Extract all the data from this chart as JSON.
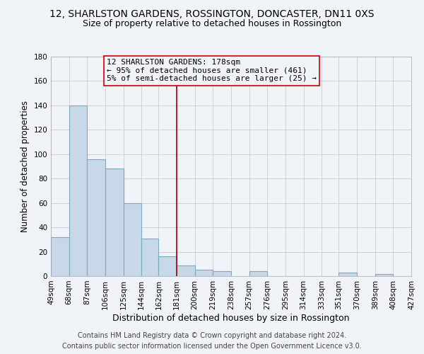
{
  "title": "12, SHARLSTON GARDENS, ROSSINGTON, DONCASTER, DN11 0XS",
  "subtitle": "Size of property relative to detached houses in Rossington",
  "xlabel": "Distribution of detached houses by size in Rossington",
  "ylabel": "Number of detached properties",
  "bin_edges": [
    49,
    68,
    87,
    106,
    125,
    144,
    162,
    181,
    200,
    219,
    238,
    257,
    276,
    295,
    314,
    333,
    351,
    370,
    389,
    408,
    427
  ],
  "bar_heights": [
    32,
    140,
    96,
    88,
    60,
    31,
    16,
    9,
    5,
    4,
    0,
    4,
    0,
    0,
    0,
    0,
    3,
    0,
    2,
    0
  ],
  "bar_color": "#c8d8e8",
  "bar_edge_color": "#7aaabb",
  "bar_linewidth": 0.8,
  "vline_x": 181,
  "vline_color": "#aa0000",
  "vline_linewidth": 1.2,
  "annotation_line1": "12 SHARLSTON GARDENS: 178sqm",
  "annotation_line2": "← 95% of detached houses are smaller (461)",
  "annotation_line3": "5% of semi-detached houses are larger (25) →",
  "annotation_box_color": "#cc0000",
  "ylim": [
    0,
    180
  ],
  "yticks": [
    0,
    20,
    40,
    60,
    80,
    100,
    120,
    140,
    160,
    180
  ],
  "xtick_labels": [
    "49sqm",
    "68sqm",
    "87sqm",
    "106sqm",
    "125sqm",
    "144sqm",
    "162sqm",
    "181sqm",
    "200sqm",
    "219sqm",
    "238sqm",
    "257sqm",
    "276sqm",
    "295sqm",
    "314sqm",
    "333sqm",
    "351sqm",
    "370sqm",
    "389sqm",
    "408sqm",
    "427sqm"
  ],
  "grid_color": "#cccccc",
  "background_color": "#f0f4f8",
  "footer_text": "Contains HM Land Registry data © Crown copyright and database right 2024.\nContains public sector information licensed under the Open Government Licence v3.0.",
  "title_fontsize": 10,
  "subtitle_fontsize": 9,
  "xlabel_fontsize": 9,
  "ylabel_fontsize": 8.5,
  "tick_fontsize": 7.5,
  "annotation_fontsize": 8,
  "footer_fontsize": 7
}
